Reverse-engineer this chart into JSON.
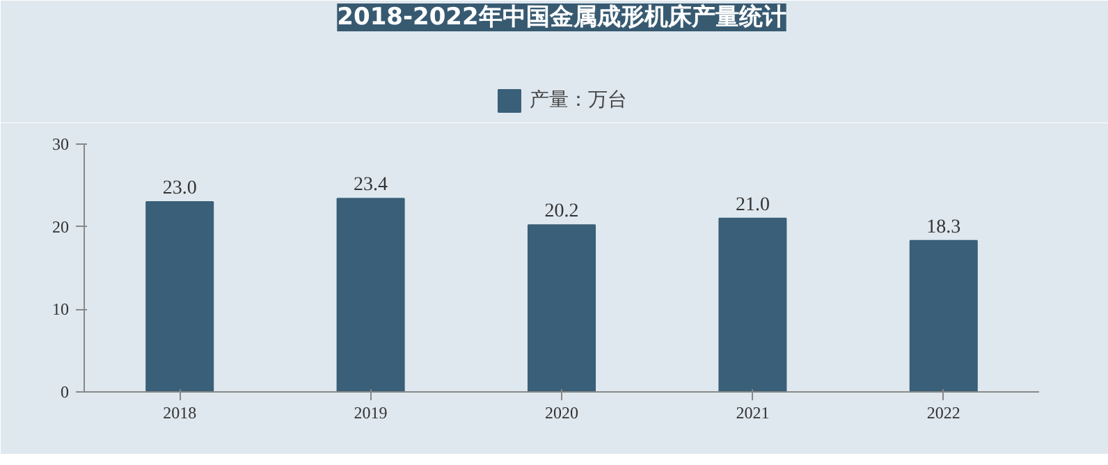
{
  "chart_data": {
    "type": "bar",
    "title": "2018-2022年中国金属成形机床产量统计",
    "categories": [
      "2018",
      "2019",
      "2020",
      "2021",
      "2022"
    ],
    "series": [
      {
        "name": "产量：万台",
        "color": "#3a5f78",
        "values": [
          23.0,
          23.4,
          20.2,
          21.0,
          18.3
        ]
      }
    ],
    "value_labels": [
      "23.0",
      "23.4",
      "20.2",
      "21.0",
      "18.3"
    ],
    "ylim": [
      0,
      30
    ],
    "yticks": [
      0,
      10,
      20,
      30
    ],
    "grid": false,
    "legend": "top"
  }
}
